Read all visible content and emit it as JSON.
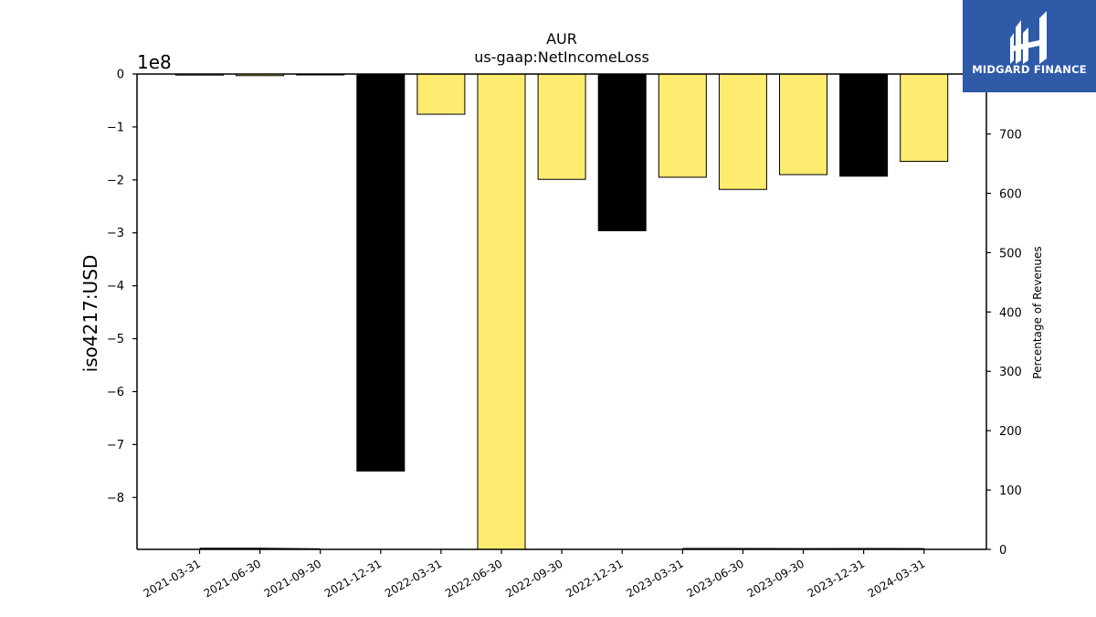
{
  "chart_data": {
    "type": "bar",
    "title": "AUR",
    "subtitle": "us-gaap:NetIncomeLoss",
    "ylabel": "iso4217:USD",
    "y_scale_label": "1e8",
    "y2label": "Percentage of Revenues",
    "categories": [
      "2021-03-31",
      "2021-06-30",
      "2021-09-30",
      "2021-12-31",
      "2022-03-31",
      "2022-06-30",
      "2022-09-30",
      "2022-12-31",
      "2023-03-31",
      "2023-06-30",
      "2023-09-30",
      "2023-12-31",
      "2024-03-31"
    ],
    "values": [
      -2000000,
      -3000000,
      -1000000,
      -750000000,
      -76000000,
      -900000000,
      -199000000,
      -296000000,
      -195000000,
      -218000000,
      -190000000,
      -193000000,
      -165000000
    ],
    "bar_colors": [
      "#fdec6f",
      "#fdec6f",
      "#fdec6f",
      "#000000",
      "#fdec6f",
      "#fdec6f",
      "#fdec6f",
      "#000000",
      "#fdec6f",
      "#fdec6f",
      "#fdec6f",
      "#000000",
      "#fdec6f"
    ],
    "y_ticks": [
      0,
      -1,
      -2,
      -3,
      -4,
      -5,
      -6,
      -7,
      -8
    ],
    "y_tick_labels": [
      "0",
      "−1",
      "−2",
      "−3",
      "−4",
      "−5",
      "−6",
      "−7",
      "−8"
    ],
    "ylim": [
      -898000000,
      0
    ],
    "y2_ticks": [
      0,
      100,
      200,
      300,
      400,
      500,
      600,
      700
    ],
    "y2lim": [
      0,
      801
    ],
    "pct_line": {
      "segments": [
        {
          "from": 0,
          "to": 2,
          "values": [
            1.5,
            1.5,
            0.6
          ]
        },
        {
          "from": 8,
          "to": 12,
          "values": [
            1.2,
            1.1,
            1.0,
            1.1,
            1.0
          ]
        }
      ],
      "color": "#000000"
    }
  },
  "logo": {
    "text": "MIDGARD FINANCE"
  }
}
